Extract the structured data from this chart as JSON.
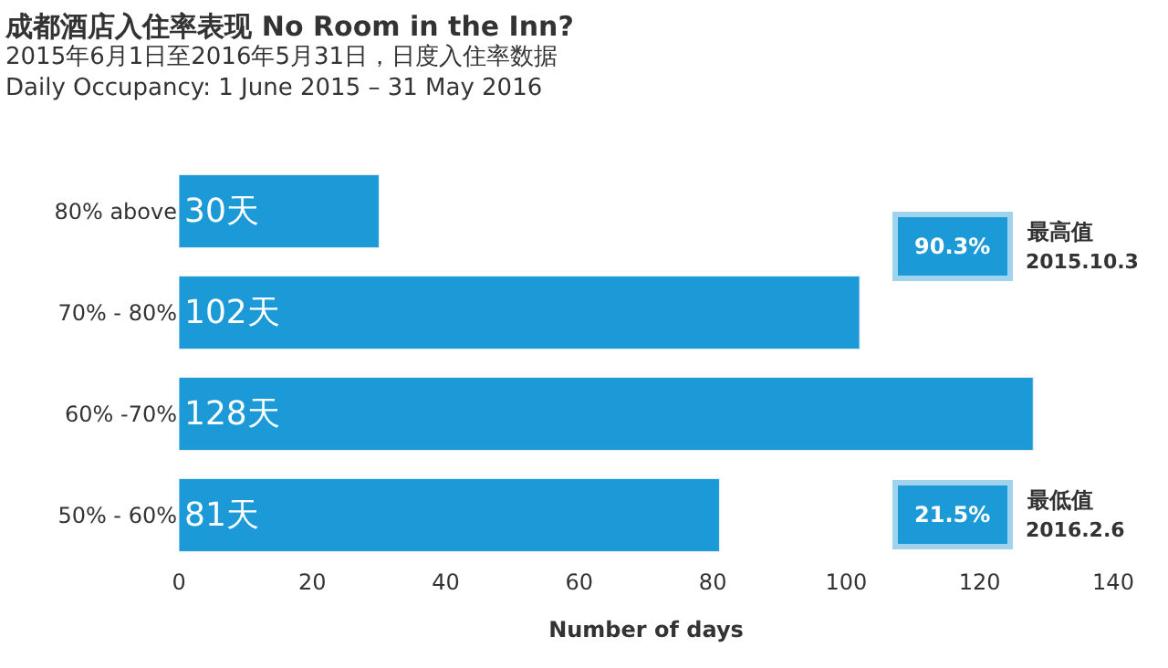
{
  "chart_data": {
    "type": "bar",
    "orientation": "horizontal",
    "title": "成都酒店入住率表现 No Room in the Inn?",
    "subtitle": "2015年6月1日至2016年5月31日，日度入住率数据\nDaily Occupancy: 1 June 2015 – 31 May 2016",
    "xlabel": "Number of days",
    "categories": [
      "80% above",
      "70% - 80%",
      "60% -70%",
      "50% - 60%"
    ],
    "values": [
      30,
      102,
      128,
      81
    ],
    "value_labels": [
      "30天",
      "102天",
      "128天",
      "81天"
    ],
    "color": "#1b9ad7",
    "xlim": [
      0,
      140
    ],
    "xticks": [
      0,
      20,
      40,
      60,
      80,
      100,
      120,
      140
    ],
    "annotations": [
      "90.3%",
      "最高值",
      "2015.10.3",
      "21.5%",
      "最低值",
      "2016.2.6"
    ]
  }
}
